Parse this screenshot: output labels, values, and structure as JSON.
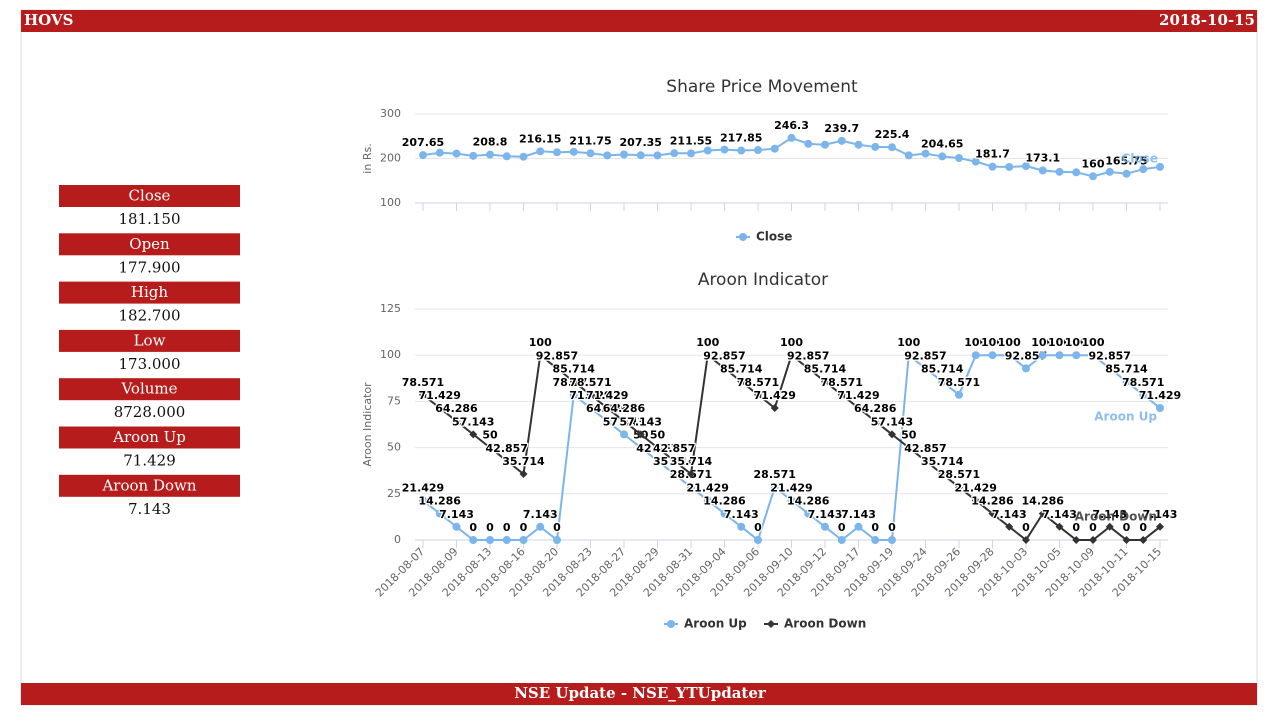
{
  "header": {
    "symbol": "HOVS",
    "date": "2018-10-15"
  },
  "stats": [
    {
      "label": "Close",
      "value": "181.150"
    },
    {
      "label": "Open",
      "value": "177.900"
    },
    {
      "label": "High",
      "value": "182.700"
    },
    {
      "label": "Low",
      "value": "173.000"
    },
    {
      "label": "Volume",
      "value": "8728.000"
    },
    {
      "label": "Aroon Up",
      "value": "71.429"
    },
    {
      "label": "Aroon Down",
      "value": "7.143"
    }
  ],
  "footer": "NSE Update - NSE_YTUpdater",
  "chart_data": [
    {
      "type": "line",
      "title": "Share Price Movement",
      "y_label": "in Rs.",
      "ylim": [
        100,
        300
      ],
      "yticks": [
        100,
        200,
        300
      ],
      "grid": true,
      "series": [
        {
          "name": "Close",
          "color": "#7cb5ec",
          "marker": "circle",
          "values": [
            207.65,
            213,
            211,
            206,
            208.8,
            205,
            204,
            216.15,
            214,
            215,
            211.75,
            207,
            209,
            207.35,
            207,
            212,
            211.55,
            218,
            220,
            217.85,
            219,
            222,
            246.3,
            233,
            231,
            239.7,
            231,
            226,
            225.4,
            207,
            211,
            204.65,
            201,
            193,
            181.7,
            181,
            183,
            173.1,
            170,
            169,
            160,
            170,
            165.75,
            176,
            181.15
          ],
          "value_labels": [
            "207.65",
            null,
            null,
            null,
            "208.8",
            null,
            null,
            "216.15",
            null,
            null,
            "211.75",
            null,
            null,
            "207.35",
            null,
            null,
            "211.55",
            null,
            null,
            "217.85",
            null,
            null,
            "246.3",
            null,
            null,
            "239.7",
            null,
            null,
            "225.4",
            null,
            null,
            "204.65",
            null,
            null,
            "181.7",
            null,
            null,
            "173.1",
            null,
            null,
            "160",
            null,
            "165.75",
            null,
            null
          ]
        }
      ]
    },
    {
      "type": "line",
      "title": "Aroon Indicator",
      "y_label": "Aroon Indicator",
      "ylim": [
        0,
        125
      ],
      "yticks": [
        0,
        25,
        50,
        75,
        100,
        125
      ],
      "grid": true,
      "categories": [
        "2018-08-07",
        null,
        "2018-08-09",
        null,
        "2018-08-13",
        null,
        "2018-08-16",
        null,
        "2018-08-20",
        null,
        "2018-08-23",
        null,
        "2018-08-27",
        null,
        "2018-08-29",
        null,
        "2018-08-31",
        null,
        "2018-09-04",
        null,
        "2018-09-06",
        null,
        "2018-09-10",
        null,
        "2018-09-12",
        null,
        "2018-09-17",
        null,
        "2018-09-19",
        null,
        "2018-09-24",
        null,
        "2018-09-26",
        null,
        "2018-09-28",
        null,
        "2018-10-03",
        null,
        "2018-10-05",
        null,
        "2018-10-09",
        null,
        "2018-10-11",
        null,
        "2018-10-15"
      ],
      "series": [
        {
          "name": "Aroon Up",
          "color": "#7cb5ec",
          "marker": "circle",
          "values": [
            21.429,
            14.286,
            7.143,
            0,
            0,
            0,
            0,
            7.143,
            0,
            78.571,
            71.429,
            64.286,
            57.143,
            50,
            42.857,
            35.714,
            28.571,
            21.429,
            14.286,
            7.143,
            0,
            28.571,
            21.429,
            14.286,
            7.143,
            0,
            7.143,
            0,
            0,
            100,
            92.857,
            85.714,
            78.571,
            100,
            100,
            100,
            92.857,
            100,
            100,
            100,
            100,
            92.857,
            85.714,
            78.571,
            71.429
          ]
        },
        {
          "name": "Aroon Down",
          "color": "#333333",
          "marker": "diamond",
          "values": [
            78.571,
            71.429,
            64.286,
            57.143,
            50,
            42.857,
            35.714,
            100,
            92.857,
            85.714,
            78.571,
            71.429,
            64.286,
            57.143,
            50,
            42.857,
            35.714,
            100,
            92.857,
            85.714,
            78.571,
            71.429,
            100,
            92.857,
            85.714,
            78.571,
            71.429,
            64.286,
            57.143,
            50,
            42.857,
            35.714,
            28.571,
            21.429,
            14.286,
            7.143,
            0,
            14.286,
            7.143,
            0,
            0,
            7.143,
            0,
            0,
            7.143
          ]
        }
      ]
    }
  ]
}
